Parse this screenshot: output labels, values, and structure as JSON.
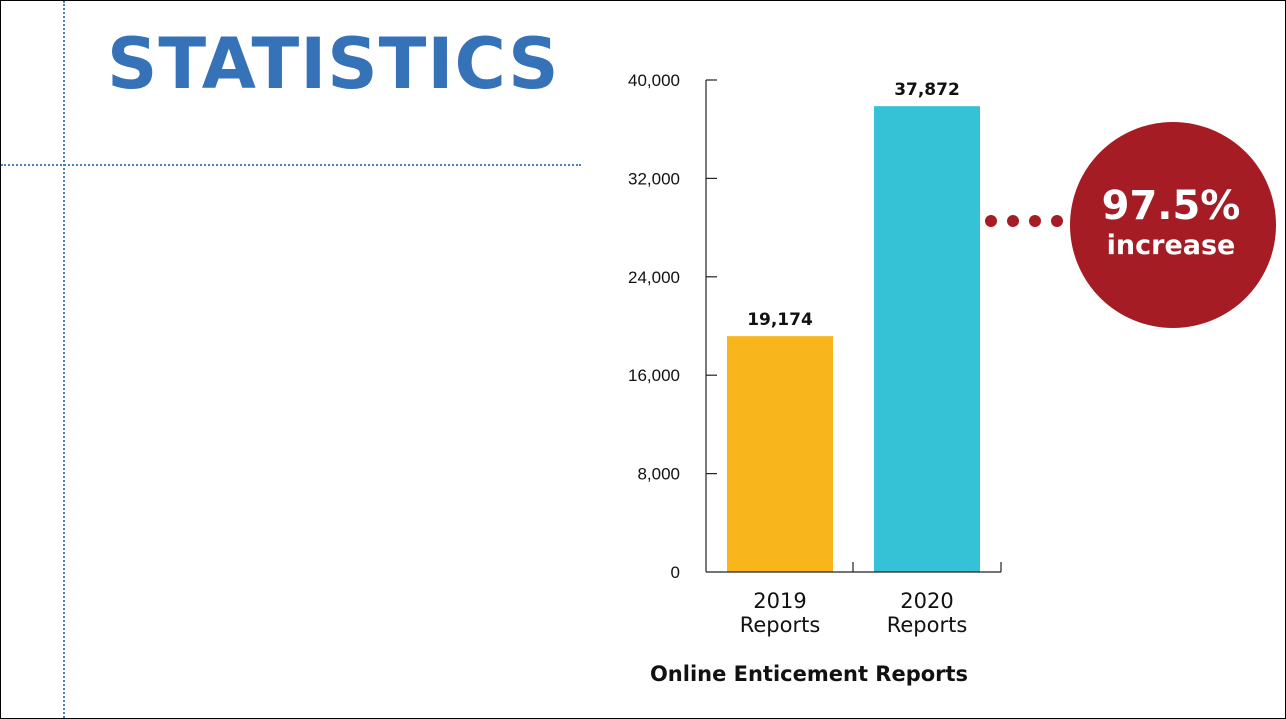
{
  "slide": {
    "title": "STATISTICS"
  },
  "callout": {
    "value": "97.5%",
    "label": "increase",
    "color": "#a51c24"
  },
  "chart_data": {
    "type": "bar",
    "title": "",
    "xlabel": "Online Enticement Reports",
    "ylabel": "",
    "categories": [
      [
        "2019",
        "Reports"
      ],
      [
        "2020",
        "Reports"
      ]
    ],
    "values": [
      19174,
      37872
    ],
    "value_labels": [
      "19,174",
      "37,872"
    ],
    "colors": [
      "#f9b51c",
      "#35c2d6"
    ],
    "ylim": [
      0,
      40000
    ],
    "yticks": [
      0,
      8000,
      16000,
      24000,
      32000,
      40000
    ],
    "ytick_labels": [
      "0",
      "8,000",
      "16,000",
      "24,000",
      "32,000",
      "40,000"
    ],
    "grid": false,
    "legend": "none"
  }
}
